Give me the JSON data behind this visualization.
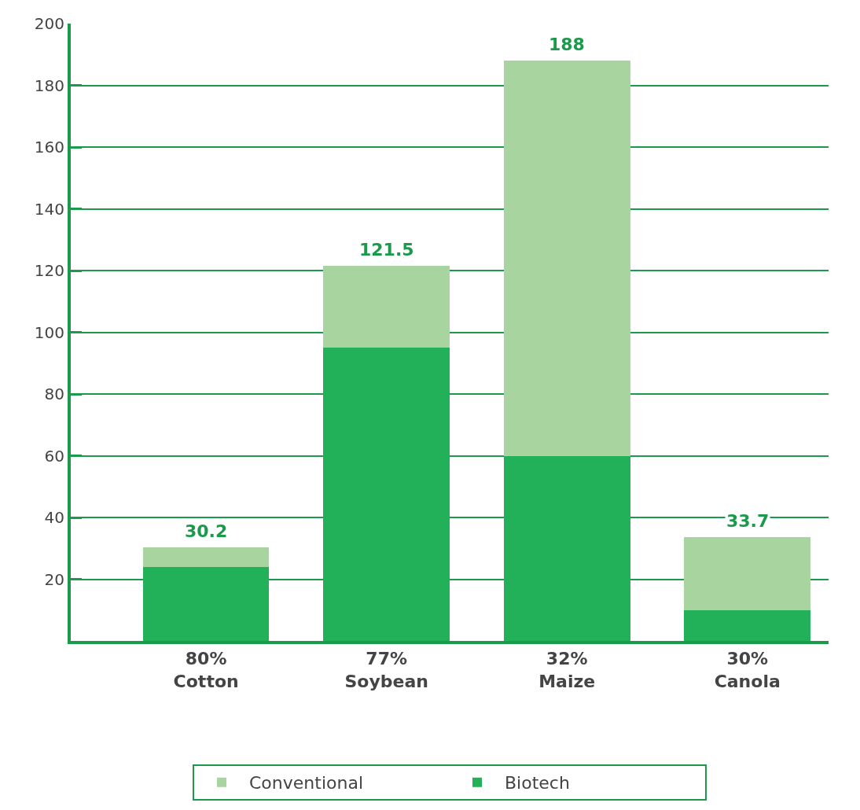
{
  "chart_data": {
    "type": "bar",
    "stacked": true,
    "categories": [
      "80%\nCotton",
      "77%\nSoybean",
      "32%\nMaize",
      "30%\nCanola"
    ],
    "series": [
      {
        "name": "Biotech",
        "color": "#22b158",
        "values": [
          24,
          95,
          60,
          10
        ]
      },
      {
        "name": "Conventional",
        "color": "#a8d59f",
        "values": [
          6.2,
          26.5,
          128,
          23.7
        ]
      }
    ],
    "totals": [
      "30.2",
      "121.5",
      "188",
      "33.7"
    ],
    "ylim": [
      0,
      200
    ],
    "yticks": [
      20,
      40,
      60,
      80,
      100,
      120,
      140,
      160,
      180,
      200
    ],
    "grid": "y",
    "legend": "bottom"
  }
}
